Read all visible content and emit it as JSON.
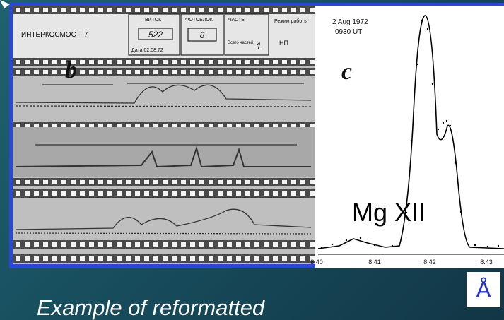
{
  "film": {
    "mission": "ИНТЕРКОСМОС – 7",
    "orbit_label": "ВИТОК",
    "orbit": "522",
    "block_label": "ФОТОБЛОК",
    "block": "8",
    "part_label": "ЧАСТЬ",
    "total_parts_label": "Всего частей:",
    "total_parts": "1",
    "mode_label": "Режим работы",
    "mode": "НП",
    "date": "Дата 02.08.72",
    "panel": "b"
  },
  "spectrum": {
    "date": "2 Aug 1972",
    "time": "0930 UT",
    "panel": "c",
    "line_label": "Mg XII",
    "xticks": [
      "8.40",
      "8.41",
      "8.42",
      "8.43"
    ],
    "unit": "Å"
  },
  "caption": "Example of reformatted"
}
